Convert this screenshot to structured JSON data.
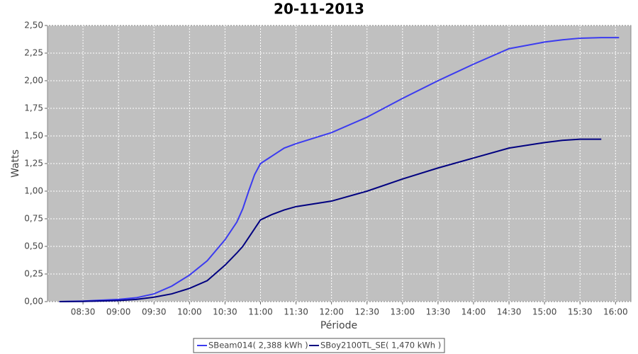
{
  "chart_data": {
    "type": "line",
    "title": "20-11-2013",
    "x_label": "Période",
    "y_label": "Watts",
    "x": [
      "08:10",
      "08:30",
      "09:00",
      "09:15",
      "09:30",
      "09:45",
      "10:00",
      "10:15",
      "10:30",
      "10:40",
      "10:45",
      "10:50",
      "10:55",
      "11:00",
      "11:10",
      "11:20",
      "11:30",
      "12:00",
      "12:30",
      "13:00",
      "13:30",
      "14:00",
      "14:30",
      "15:00",
      "15:15",
      "15:30",
      "15:48",
      "16:00",
      "16:03"
    ],
    "series": [
      {
        "name": "SBeam014( 2,388 kWh )",
        "color": "#3b3bf0",
        "values": [
          0,
          0.005,
          0.02,
          0.035,
          0.07,
          0.14,
          0.24,
          0.37,
          0.56,
          0.72,
          0.84,
          1.0,
          1.15,
          1.25,
          1.32,
          1.39,
          1.43,
          1.53,
          1.67,
          1.84,
          2.0,
          2.15,
          2.29,
          2.35,
          2.37,
          2.385,
          2.39,
          2.39,
          2.39
        ]
      },
      {
        "name": "SBoy2100TL_SE( 1,470 kWh )",
        "color": "#000080",
        "values": [
          0,
          0.002,
          0.01,
          0.02,
          0.04,
          0.07,
          0.12,
          0.19,
          0.33,
          0.44,
          0.5,
          0.58,
          0.66,
          0.74,
          0.79,
          0.83,
          0.86,
          0.91,
          1.0,
          1.11,
          1.21,
          1.3,
          1.39,
          1.44,
          1.46,
          1.47,
          1.47,
          null,
          null
        ]
      }
    ],
    "xlim": [
      "08:00",
      "16:13"
    ],
    "xticks": [
      "08:30",
      "09:00",
      "09:30",
      "10:00",
      "10:30",
      "11:00",
      "11:30",
      "12:00",
      "12:30",
      "13:00",
      "13:30",
      "14:00",
      "14:30",
      "15:00",
      "15:30",
      "16:00"
    ],
    "ylim": [
      0,
      2.5
    ],
    "yticks": [
      {
        "value": 0,
        "label": "0,00"
      },
      {
        "value": 0.25,
        "label": "0,25"
      },
      {
        "value": 0.5,
        "label": "0,50"
      },
      {
        "value": 0.75,
        "label": "0,75"
      },
      {
        "value": 1,
        "label": "1,00"
      },
      {
        "value": 1.25,
        "label": "1,25"
      },
      {
        "value": 1.5,
        "label": "1,50"
      },
      {
        "value": 1.75,
        "label": "1,75"
      },
      {
        "value": 2,
        "label": "2,00"
      },
      {
        "value": 2.25,
        "label": "2,25"
      },
      {
        "value": 2.5,
        "label": "2,50"
      }
    ],
    "grid": true,
    "legend": "bottom"
  }
}
